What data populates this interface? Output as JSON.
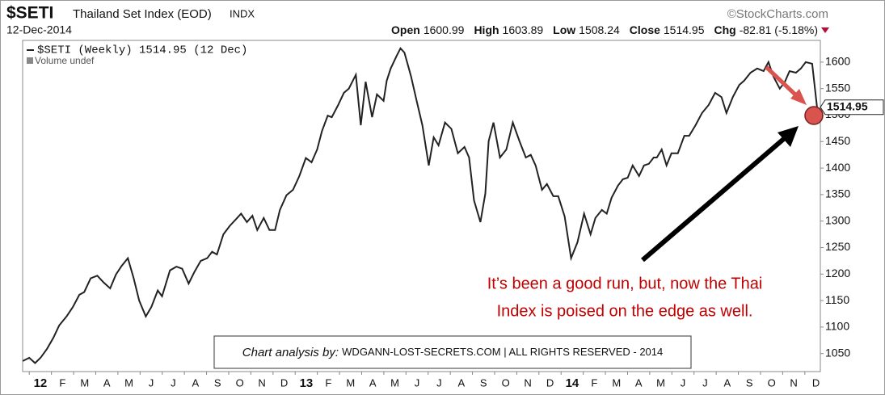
{
  "header": {
    "symbol": "$SETI",
    "name": "Thailand Set Index (EOD)",
    "exchange": "INDX",
    "date": "12-Dec-2014",
    "copyright": "©StockCharts.com",
    "quote": [
      {
        "label": "Open",
        "value": "1600.99"
      },
      {
        "label": "High",
        "value": "1603.89"
      },
      {
        "label": "Low",
        "value": "1508.24"
      },
      {
        "label": "Close",
        "value": "1514.95"
      },
      {
        "label": "Chg",
        "value": "-82.81 (-5.18%)"
      }
    ]
  },
  "chart_data": {
    "type": "line",
    "legend": [
      "$SETI (Weekly) 1514.95 (12 Dec)",
      "Volume undef"
    ],
    "annotation": [
      "It’s been a good run, but, now the Thai",
      "Index is poised on the edge as well."
    ],
    "credit": {
      "prefix": "Chart analysis by:",
      "text": "WDGANN-LOST-SECRETS.COM | ALL RIGHTS RESERVED - 2014"
    },
    "xlim": [
      -0.3,
      35.7
    ],
    "xticks": [
      {
        "value": 0,
        "label": "12"
      },
      {
        "value": 1,
        "label": "F"
      },
      {
        "value": 2,
        "label": "M"
      },
      {
        "value": 3,
        "label": "A"
      },
      {
        "value": 4,
        "label": "M"
      },
      {
        "value": 5,
        "label": "J"
      },
      {
        "value": 6,
        "label": "J"
      },
      {
        "value": 7,
        "label": "A"
      },
      {
        "value": 8,
        "label": "S"
      },
      {
        "value": 9,
        "label": "O"
      },
      {
        "value": 10,
        "label": "N"
      },
      {
        "value": 11,
        "label": "D"
      },
      {
        "value": 12,
        "label": "13"
      },
      {
        "value": 13,
        "label": "F"
      },
      {
        "value": 14,
        "label": "M"
      },
      {
        "value": 15,
        "label": "A"
      },
      {
        "value": 16,
        "label": "M"
      },
      {
        "value": 17,
        "label": "J"
      },
      {
        "value": 18,
        "label": "J"
      },
      {
        "value": 19,
        "label": "A"
      },
      {
        "value": 20,
        "label": "S"
      },
      {
        "value": 21,
        "label": "O"
      },
      {
        "value": 22,
        "label": "N"
      },
      {
        "value": 23,
        "label": "D"
      },
      {
        "value": 24,
        "label": "14"
      },
      {
        "value": 25,
        "label": "F"
      },
      {
        "value": 26,
        "label": "M"
      },
      {
        "value": 27,
        "label": "A"
      },
      {
        "value": 28,
        "label": "M"
      },
      {
        "value": 29,
        "label": "J"
      },
      {
        "value": 30,
        "label": "J"
      },
      {
        "value": 31,
        "label": "A"
      },
      {
        "value": 32,
        "label": "S"
      },
      {
        "value": 33,
        "label": "O"
      },
      {
        "value": 34,
        "label": "N"
      },
      {
        "value": 35,
        "label": "D"
      }
    ],
    "ylim": [
      1016,
      1641
    ],
    "yticks": [
      1050,
      1100,
      1150,
      1200,
      1250,
      1300,
      1350,
      1400,
      1450,
      1500,
      1550,
      1600
    ],
    "series": [
      {
        "name": "$SETI",
        "color": "#222222",
        "x": [
          -0.29,
          0,
          0.26,
          0.51,
          0.8,
          1.09,
          1.35,
          1.68,
          1.97,
          2.26,
          2.48,
          2.77,
          3.07,
          3.36,
          3.65,
          3.91,
          4.16,
          4.45,
          4.71,
          4.96,
          5.26,
          5.51,
          5.8,
          5.99,
          6.35,
          6.64,
          6.9,
          7.19,
          7.45,
          7.74,
          8.03,
          8.25,
          8.47,
          8.76,
          9.05,
          9.34,
          9.56,
          9.82,
          10.07,
          10.29,
          10.58,
          10.84,
          11.09,
          11.31,
          11.61,
          11.9,
          12.19,
          12.48,
          12.74,
          12.99,
          13.21,
          13.47,
          13.65,
          13.94,
          14.2,
          14.42,
          14.74,
          14.96,
          15.18,
          15.47,
          15.69,
          15.99,
          16.13,
          16.31,
          16.57,
          16.75,
          16.93,
          17.23,
          17.48,
          17.74,
          18.03,
          18.25,
          18.47,
          18.76,
          19.05,
          19.34,
          19.64,
          19.85,
          20.07,
          20.36,
          20.58,
          20.73,
          20.95,
          21.24,
          21.53,
          21.82,
          22.12,
          22.41,
          22.63,
          22.85,
          23.14,
          23.36,
          23.65,
          23.87,
          24.16,
          24.45,
          24.74,
          25.04,
          25.33,
          25.55,
          25.84,
          26.06,
          26.28,
          26.57,
          26.79,
          27.01,
          27.23,
          27.52,
          27.74,
          27.96,
          28.18,
          28.32,
          28.54,
          28.76,
          28.98,
          29.27,
          29.56,
          29.78,
          30.07,
          30.36,
          30.66,
          30.95,
          31.24,
          31.46,
          31.75,
          32.04,
          32.26,
          32.55,
          32.85,
          33.14,
          33.36,
          33.58,
          33.87,
          34.09,
          34.31,
          34.6,
          34.82,
          35.04,
          35.33,
          35.55
        ],
        "values": [
          1036,
          1042,
          1032,
          1042,
          1059,
          1080,
          1103,
          1120,
          1138,
          1161,
          1166,
          1192,
          1197,
          1184,
          1173,
          1199,
          1215,
          1230,
          1192,
          1150,
          1120,
          1138,
          1169,
          1158,
          1207,
          1214,
          1210,
          1182,
          1204,
          1225,
          1230,
          1242,
          1237,
          1275,
          1291,
          1304,
          1314,
          1298,
          1310,
          1283,
          1306,
          1283,
          1283,
          1321,
          1349,
          1359,
          1385,
          1419,
          1411,
          1435,
          1470,
          1499,
          1496,
          1519,
          1542,
          1550,
          1576,
          1481,
          1563,
          1496,
          1539,
          1527,
          1565,
          1588,
          1611,
          1626,
          1618,
          1573,
          1527,
          1481,
          1405,
          1458,
          1443,
          1486,
          1474,
          1428,
          1440,
          1420,
          1339,
          1298,
          1352,
          1451,
          1486,
          1420,
          1435,
          1486,
          1451,
          1420,
          1425,
          1405,
          1359,
          1370,
          1347,
          1347,
          1309,
          1230,
          1260,
          1314,
          1275,
          1306,
          1321,
          1314,
          1344,
          1367,
          1379,
          1382,
          1405,
          1385,
          1405,
          1408,
          1420,
          1420,
          1435,
          1405,
          1428,
          1428,
          1461,
          1461,
          1481,
          1504,
          1519,
          1542,
          1534,
          1504,
          1534,
          1557,
          1565,
          1580,
          1588,
          1583,
          1600,
          1573,
          1550,
          1562,
          1583,
          1580,
          1588,
          1600,
          1597,
          1514.95
        ]
      }
    ]
  }
}
